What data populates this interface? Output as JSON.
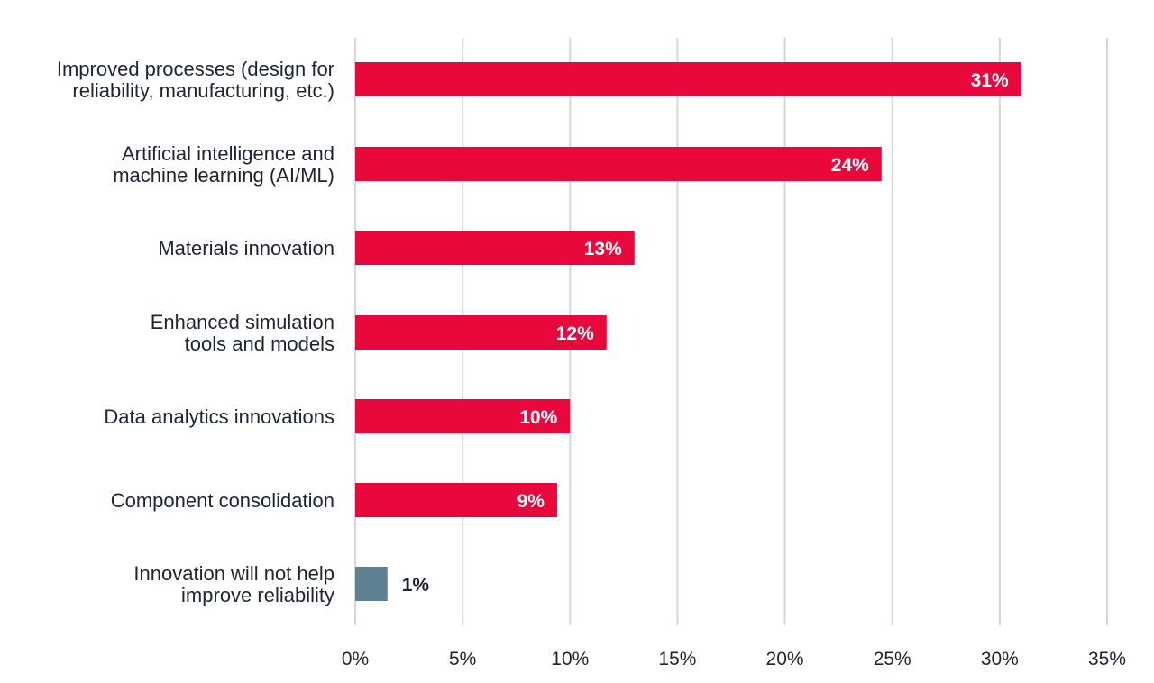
{
  "chart_data": {
    "type": "bar",
    "orientation": "horizontal",
    "categories": [
      [
        "Improved processes (design for",
        "reliability, manufacturing, etc.)"
      ],
      [
        "Artificial intelligence and",
        "machine learning (AI/ML)"
      ],
      [
        "Materials innovation"
      ],
      [
        "Enhanced simulation",
        "tools and models"
      ],
      [
        "Data analytics innovations"
      ],
      [
        "Component consolidation"
      ],
      [
        "Innovation will not help",
        "improve reliability"
      ]
    ],
    "values": [
      31,
      24.5,
      13,
      11.7,
      10,
      9.4,
      1.5
    ],
    "value_labels": [
      "31%",
      "24%",
      "13%",
      "12%",
      "10%",
      "9%",
      "1%"
    ],
    "colors": [
      "#e8083c",
      "#e8083c",
      "#e8083c",
      "#e8083c",
      "#e8083c",
      "#e8083c",
      "#5f7f92"
    ],
    "x_ticks": [
      0,
      5,
      10,
      15,
      20,
      25,
      30,
      35
    ],
    "x_tick_labels": [
      "0%",
      "5%",
      "10%",
      "15%",
      "20%",
      "25%",
      "30%",
      "35%"
    ],
    "xlim": [
      0,
      35
    ],
    "grid": true,
    "title": "",
    "xlabel": "",
    "ylabel": ""
  }
}
